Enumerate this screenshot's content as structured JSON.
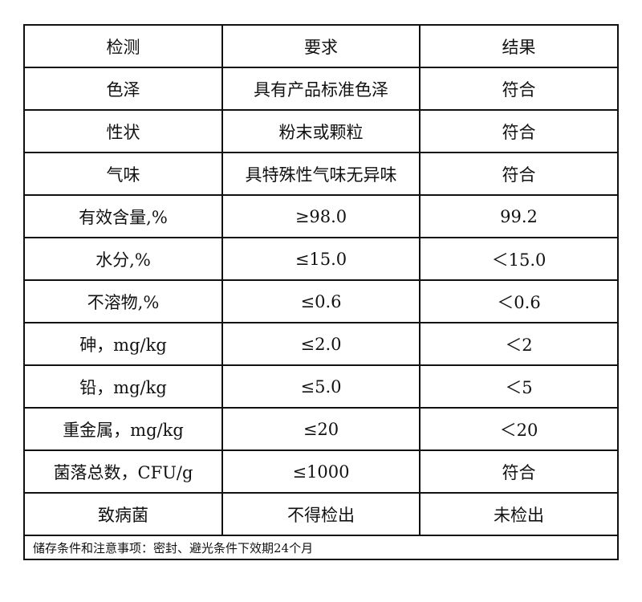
{
  "header": [
    "检测",
    "要求",
    "结果"
  ],
  "rows": [
    [
      "色泽",
      "具有产品标准色泽",
      "符合"
    ],
    [
      "性状",
      "粉末或颗粒",
      "符合"
    ],
    [
      "气味",
      "具特殊性气味无异味",
      "符合"
    ],
    [
      "有效含量,%",
      "≥98.0",
      "99.2"
    ],
    [
      "水分,%",
      "≤15.0",
      "＜15.0"
    ],
    [
      "不溶物,%",
      "≤0.6",
      "＜0.6"
    ],
    [
      "砷，mg/kg",
      "≤2.0",
      "＜2"
    ],
    [
      "铅，mg/kg",
      "≤5.0",
      "＜5"
    ],
    [
      "重金属，mg/kg",
      "≤20",
      "＜20"
    ],
    [
      "菌落总数，CFU/g",
      "≤1000",
      "符合"
    ],
    [
      "致病菌",
      "不得检出",
      "未检出"
    ]
  ],
  "footer": "储存条件和注意事项：密封、避光条件下效期24个月"
}
